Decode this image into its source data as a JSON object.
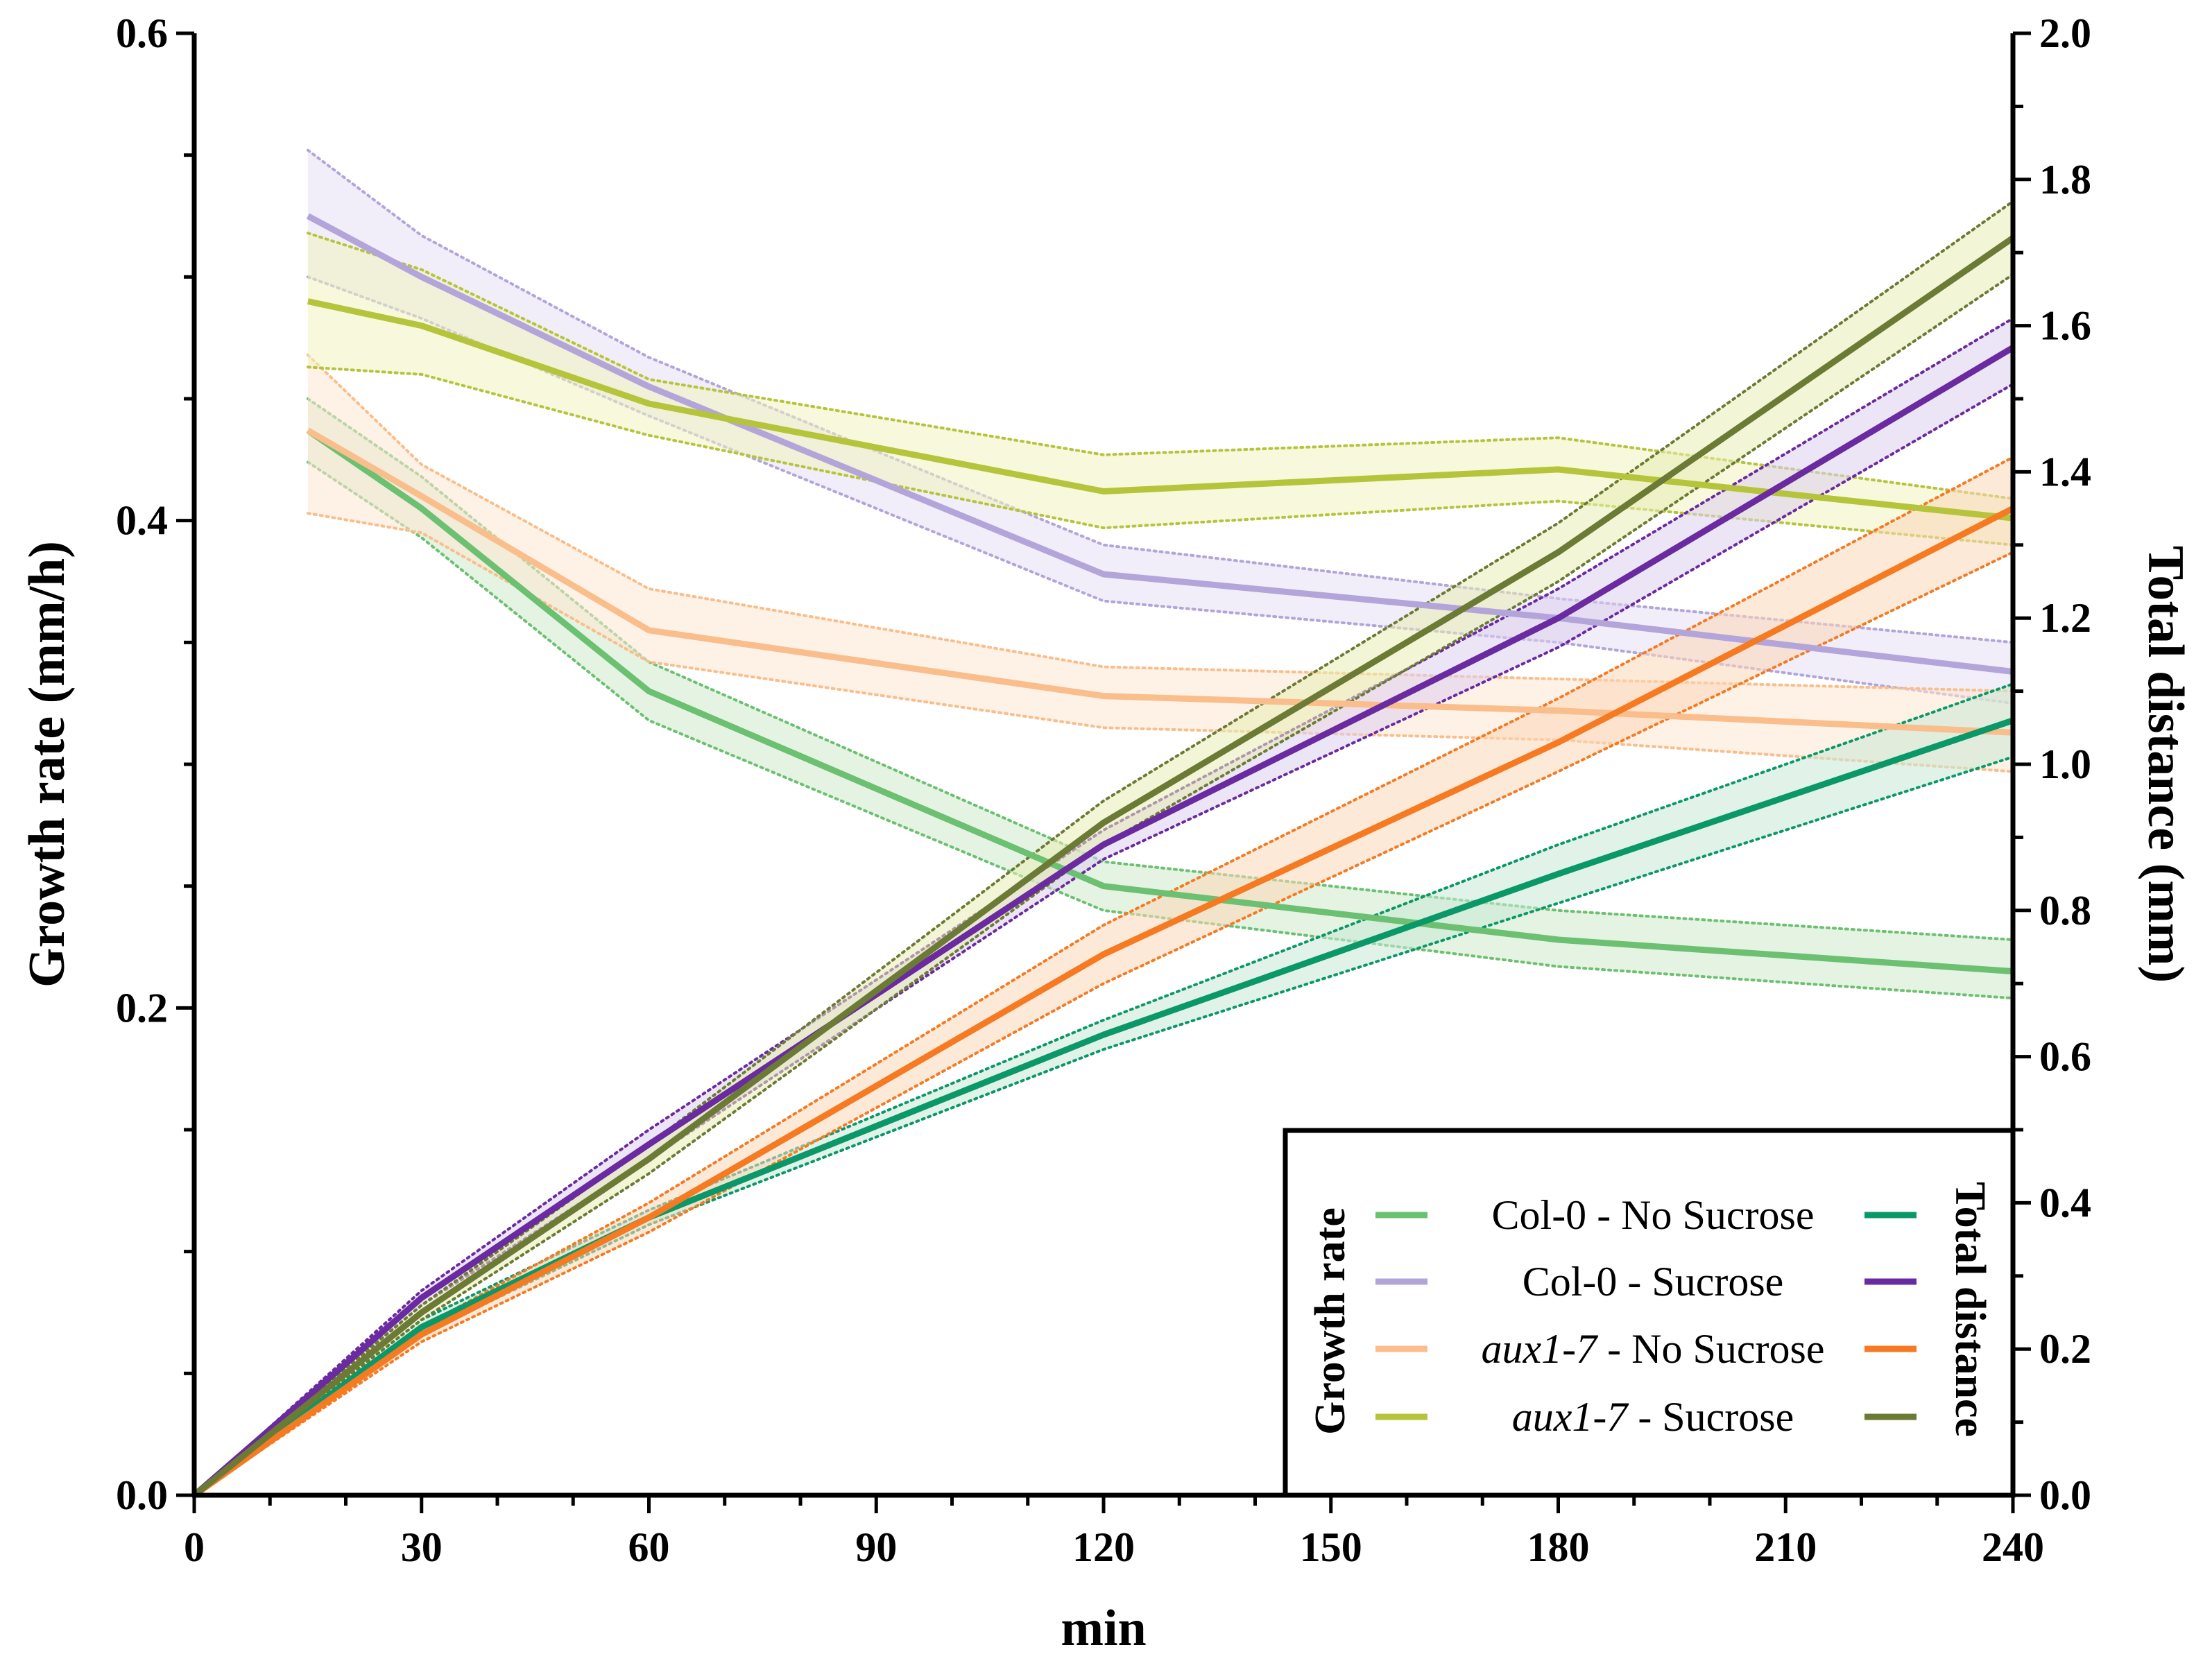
{
  "chart_data": {
    "type": "line",
    "x_label": "min",
    "y_left_label": "Growth rate (mm/h)",
    "y_right_label": "Total distance (mm)",
    "x_range": [
      0,
      240
    ],
    "y_left_range": [
      0,
      0.6
    ],
    "y_right_range": [
      0,
      2.0
    ],
    "x_ticks": [
      "0",
      "30",
      "60",
      "90",
      "120",
      "150",
      "180",
      "210",
      "240"
    ],
    "y_left_ticks": [
      "0.0",
      "0.2",
      "0.4",
      "0.6"
    ],
    "y_right_ticks": [
      "0.0",
      "0.2",
      "0.4",
      "0.6",
      "0.8",
      "1.0",
      "1.2",
      "1.4",
      "1.6",
      "1.8",
      "2.0"
    ],
    "legend": {
      "growth_title": "Growth rate",
      "distance_title": "Total distance",
      "entries": [
        {
          "prefix": "Col-0",
          "suffix": " - No Sucrose",
          "italic": false
        },
        {
          "prefix": "Col-0",
          "suffix": " - Sucrose",
          "italic": false
        },
        {
          "prefix": "aux1-7",
          "suffix": " - No Sucrose",
          "italic": true
        },
        {
          "prefix": "aux1-7",
          "suffix": " - Sucrose",
          "italic": true
        }
      ]
    },
    "growth_rate_series": [
      {
        "name": "Col-0 - No Sucrose",
        "color": "#6cc071",
        "fill": "#cfe9cc",
        "x": [
          15,
          30,
          60,
          120,
          180,
          240
        ],
        "y": [
          0.437,
          0.405,
          0.33,
          0.25,
          0.228,
          0.215
        ],
        "upper": [
          0.45,
          0.418,
          0.342,
          0.26,
          0.24,
          0.228
        ],
        "lower": [
          0.424,
          0.393,
          0.318,
          0.24,
          0.217,
          0.204
        ]
      },
      {
        "name": "Col-0 - Sucrose",
        "color": "#b3a5d9",
        "fill": "#e6e0f4",
        "x": [
          15,
          30,
          60,
          120,
          180,
          240
        ],
        "y": [
          0.525,
          0.5,
          0.455,
          0.378,
          0.36,
          0.338
        ],
        "upper": [
          0.552,
          0.517,
          0.467,
          0.39,
          0.368,
          0.35
        ],
        "lower": [
          0.5,
          0.483,
          0.443,
          0.367,
          0.35,
          0.325
        ]
      },
      {
        "name": "aux1-7 - No Sucrose",
        "color": "#f9be8b",
        "fill": "#fde6d2",
        "x": [
          15,
          30,
          60,
          120,
          180,
          240
        ],
        "y": [
          0.437,
          0.41,
          0.355,
          0.328,
          0.322,
          0.313
        ],
        "upper": [
          0.468,
          0.423,
          0.372,
          0.34,
          0.335,
          0.33
        ],
        "lower": [
          0.403,
          0.395,
          0.342,
          0.315,
          0.31,
          0.297
        ]
      },
      {
        "name": "aux1-7 - Sucrose",
        "color": "#b5c43b",
        "fill": "#f1f3c0",
        "x": [
          15,
          30,
          60,
          120,
          180,
          240
        ],
        "y": [
          0.49,
          0.48,
          0.448,
          0.412,
          0.421,
          0.401
        ],
        "upper": [
          0.518,
          0.503,
          0.458,
          0.427,
          0.434,
          0.409
        ],
        "lower": [
          0.463,
          0.46,
          0.435,
          0.397,
          0.408,
          0.39
        ]
      }
    ],
    "total_distance_series": [
      {
        "name": "Col-0 - No Sucrose",
        "color": "#0a9868",
        "fill": "#c8e8d6",
        "x": [
          0,
          30,
          60,
          120,
          180,
          240
        ],
        "y": [
          0.0,
          0.23,
          0.38,
          0.63,
          0.85,
          1.06
        ],
        "upper": [
          0.0,
          0.24,
          0.39,
          0.65,
          0.89,
          1.11
        ],
        "lower": [
          0.0,
          0.22,
          0.37,
          0.61,
          0.81,
          1.01
        ]
      },
      {
        "name": "Col-0 - Sucrose",
        "color": "#6a2aa0",
        "fill": "#ddd0ee",
        "x": [
          0,
          30,
          60,
          120,
          180,
          240
        ],
        "y": [
          0.0,
          0.27,
          0.48,
          0.89,
          1.2,
          1.57
        ],
        "upper": [
          0.0,
          0.28,
          0.5,
          0.91,
          1.24,
          1.61
        ],
        "lower": [
          0.0,
          0.26,
          0.46,
          0.87,
          1.16,
          1.52
        ]
      },
      {
        "name": "aux1-7 - No Sucrose",
        "color": "#f57a22",
        "fill": "#fbd7b8",
        "x": [
          0,
          30,
          60,
          120,
          180,
          240
        ],
        "y": [
          0.0,
          0.22,
          0.38,
          0.74,
          1.03,
          1.35
        ],
        "upper": [
          0.0,
          0.23,
          0.4,
          0.78,
          1.09,
          1.42
        ],
        "lower": [
          0.0,
          0.21,
          0.36,
          0.7,
          0.99,
          1.29
        ]
      },
      {
        "name": "aux1-7 - Sucrose",
        "color": "#6b7a34",
        "fill": "#e8ecb4",
        "x": [
          0,
          30,
          60,
          120,
          180,
          240
        ],
        "y": [
          0.0,
          0.25,
          0.46,
          0.92,
          1.29,
          1.72
        ],
        "upper": [
          0.0,
          0.26,
          0.48,
          0.95,
          1.33,
          1.77
        ],
        "lower": [
          0.0,
          0.24,
          0.44,
          0.89,
          1.25,
          1.67
        ]
      }
    ]
  }
}
